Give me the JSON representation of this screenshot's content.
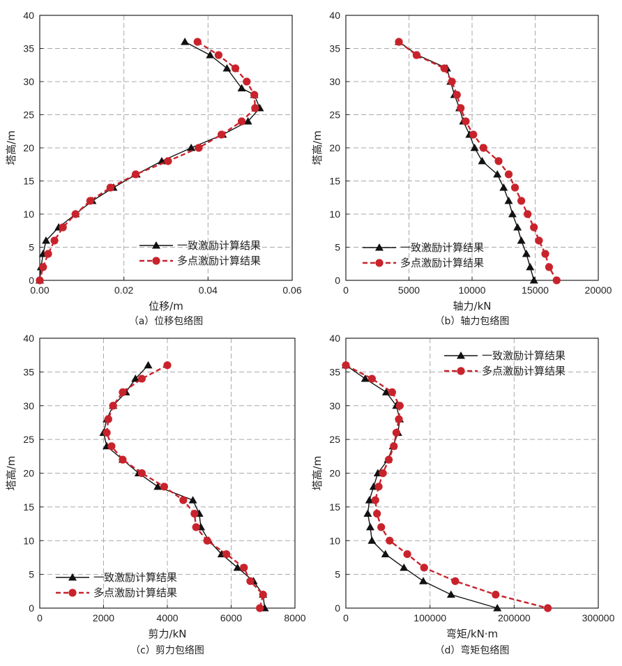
{
  "colors": {
    "s1": "#111111",
    "s2": "#c8232c",
    "grid": "#a8a8a8",
    "axis": "#222222"
  },
  "chart_data": [
    {
      "type": "line",
      "caption": "（a）位移包络图",
      "xlabel": "位移/m",
      "ylabel": "塔高/m",
      "xlim": [
        0,
        0.06
      ],
      "ylim": [
        0,
        40
      ],
      "xticks": [
        "0.00",
        "0.02",
        "0.04",
        "0.06"
      ],
      "xtick_values": [
        0,
        0.02,
        0.04,
        0.06
      ],
      "yticks": [
        0,
        5,
        10,
        15,
        20,
        25,
        30,
        35,
        40
      ],
      "grid": true,
      "legend_position": "lower-right",
      "series": [
        {
          "name": "一致激励计算结果",
          "marker": "triangle",
          "points": [
            [
              0.0345,
              36
            ],
            [
              0.0405,
              34
            ],
            [
              0.0445,
              32
            ],
            [
              0.048,
              29
            ],
            [
              0.051,
              28
            ],
            [
              0.0523,
              26
            ],
            [
              0.0495,
              24
            ],
            [
              0.0435,
              22
            ],
            [
              0.036,
              20
            ],
            [
              0.029,
              18
            ],
            [
              0.023,
              16
            ],
            [
              0.0175,
              14
            ],
            [
              0.0125,
              12
            ],
            [
              0.0085,
              10
            ],
            [
              0.0045,
              8
            ],
            [
              0.0015,
              6
            ],
            [
              0.0008,
              4
            ],
            [
              0.0003,
              2
            ],
            [
              0.0,
              0
            ]
          ]
        },
        {
          "name": "多点激励计算结果",
          "marker": "circle",
          "points": [
            [
              0.0375,
              36
            ],
            [
              0.0425,
              34
            ],
            [
              0.0465,
              32
            ],
            [
              0.0492,
              30
            ],
            [
              0.051,
              28
            ],
            [
              0.0512,
              26
            ],
            [
              0.048,
              24
            ],
            [
              0.0432,
              22
            ],
            [
              0.0378,
              20
            ],
            [
              0.0305,
              18
            ],
            [
              0.0228,
              16
            ],
            [
              0.0168,
              14
            ],
            [
              0.012,
              12
            ],
            [
              0.0085,
              10
            ],
            [
              0.0055,
              8
            ],
            [
              0.0035,
              6
            ],
            [
              0.002,
              4
            ],
            [
              0.0008,
              2
            ],
            [
              0.0,
              0
            ]
          ]
        }
      ]
    },
    {
      "type": "line",
      "caption": "（b）轴力包络图",
      "xlabel": "轴力/kN",
      "ylabel": "塔高/m",
      "xlim": [
        0,
        20000
      ],
      "ylim": [
        0,
        40
      ],
      "xticks": [
        "0",
        "5000",
        "10000",
        "15000",
        "20000"
      ],
      "xtick_values": [
        0,
        5000,
        10000,
        15000,
        20000
      ],
      "yticks": [
        0,
        5,
        10,
        15,
        20,
        25,
        30,
        35,
        40
      ],
      "grid": true,
      "legend_position": "lower-left",
      "series": [
        {
          "name": "一致激励计算结果",
          "marker": "triangle",
          "points": [
            [
              4200,
              36
            ],
            [
              5700,
              34
            ],
            [
              8000,
              32
            ],
            [
              8300,
              30
            ],
            [
              8600,
              28
            ],
            [
              9000,
              26
            ],
            [
              9300,
              24
            ],
            [
              9800,
              22
            ],
            [
              10200,
              20
            ],
            [
              10800,
              18
            ],
            [
              12000,
              16
            ],
            [
              12500,
              14
            ],
            [
              12900,
              12
            ],
            [
              13200,
              10
            ],
            [
              13600,
              8
            ],
            [
              13900,
              6
            ],
            [
              14300,
              4
            ],
            [
              14600,
              2
            ],
            [
              14900,
              0
            ]
          ]
        },
        {
          "name": "多点激励计算结果",
          "marker": "circle",
          "points": [
            [
              4200,
              36
            ],
            [
              5600,
              34
            ],
            [
              7800,
              32
            ],
            [
              8400,
              30
            ],
            [
              8800,
              28
            ],
            [
              9100,
              26
            ],
            [
              9500,
              24
            ],
            [
              10100,
              22
            ],
            [
              10900,
              20
            ],
            [
              12100,
              18
            ],
            [
              12900,
              16
            ],
            [
              13400,
              14
            ],
            [
              13900,
              12
            ],
            [
              14400,
              10
            ],
            [
              14900,
              8
            ],
            [
              15300,
              6
            ],
            [
              15800,
              4
            ],
            [
              16100,
              2
            ],
            [
              16700,
              0
            ]
          ]
        }
      ]
    },
    {
      "type": "line",
      "caption": "（c）剪力包络图",
      "xlabel": "剪力/kN",
      "ylabel": "塔高/m",
      "xlim": [
        0,
        8000
      ],
      "ylim": [
        0,
        40
      ],
      "xticks": [
        "0",
        "2000",
        "4000",
        "6000",
        "8000"
      ],
      "xtick_values": [
        0,
        2000,
        4000,
        6000,
        8000
      ],
      "yticks": [
        0,
        5,
        10,
        15,
        20,
        25,
        30,
        35,
        40
      ],
      "grid": true,
      "legend_position": "lower-left",
      "series": [
        {
          "name": "一致激励计算结果",
          "marker": "triangle",
          "points": [
            [
              3400,
              36
            ],
            [
              3000,
              34
            ],
            [
              2700,
              32
            ],
            [
              2300,
              30
            ],
            [
              2100,
              28
            ],
            [
              2000,
              26
            ],
            [
              2100,
              24
            ],
            [
              2600,
              22
            ],
            [
              3100,
              20
            ],
            [
              3700,
              18
            ],
            [
              4800,
              16
            ],
            [
              5000,
              14
            ],
            [
              5050,
              12
            ],
            [
              5300,
              10
            ],
            [
              5700,
              8
            ],
            [
              6200,
              6
            ],
            [
              6700,
              4
            ],
            [
              7000,
              2
            ],
            [
              7050,
              0
            ]
          ]
        },
        {
          "name": "多点激励计算结果",
          "marker": "circle",
          "points": [
            [
              4000,
              36
            ],
            [
              3200,
              34
            ],
            [
              2600,
              32
            ],
            [
              2300,
              30
            ],
            [
              2150,
              28
            ],
            [
              2100,
              26
            ],
            [
              2250,
              24
            ],
            [
              2600,
              22
            ],
            [
              3200,
              20
            ],
            [
              3900,
              18
            ],
            [
              4500,
              16
            ],
            [
              4850,
              14
            ],
            [
              4900,
              12
            ],
            [
              5250,
              10
            ],
            [
              5850,
              8
            ],
            [
              6400,
              6
            ],
            [
              6600,
              4
            ],
            [
              7000,
              2
            ],
            [
              6900,
              0
            ]
          ]
        }
      ]
    },
    {
      "type": "line",
      "caption": "（d）弯矩包络图",
      "xlabel": "弯矩/kN·m",
      "ylabel": "塔高/m",
      "xlim": [
        0,
        300000
      ],
      "ylim": [
        0,
        40
      ],
      "xticks": [
        "0",
        "100000",
        "200000",
        "300000"
      ],
      "xtick_values": [
        0,
        100000,
        200000,
        300000
      ],
      "yticks": [
        0,
        5,
        10,
        15,
        20,
        25,
        30,
        35,
        40
      ],
      "grid": true,
      "legend_position": "top-right",
      "series": [
        {
          "name": "一致激励计算结果",
          "marker": "triangle",
          "points": [
            [
              0,
              36
            ],
            [
              23000,
              34
            ],
            [
              48000,
              32
            ],
            [
              60000,
              30
            ],
            [
              64000,
              28
            ],
            [
              62000,
              26
            ],
            [
              56000,
              24
            ],
            [
              50000,
              22
            ],
            [
              38000,
              20
            ],
            [
              33000,
              18
            ],
            [
              28000,
              16
            ],
            [
              26000,
              14
            ],
            [
              29000,
              12
            ],
            [
              31000,
              10
            ],
            [
              47000,
              8
            ],
            [
              69000,
              6
            ],
            [
              92000,
              4
            ],
            [
              125000,
              2
            ],
            [
              180000,
              0
            ]
          ]
        },
        {
          "name": "多点激励计算结果",
          "marker": "circle",
          "points": [
            [
              0,
              36
            ],
            [
              31000,
              34
            ],
            [
              55000,
              32
            ],
            [
              64000,
              30
            ],
            [
              63000,
              28
            ],
            [
              60000,
              26
            ],
            [
              57000,
              24
            ],
            [
              51000,
              22
            ],
            [
              44000,
              20
            ],
            [
              39000,
              18
            ],
            [
              35000,
              16
            ],
            [
              37000,
              14
            ],
            [
              42000,
              12
            ],
            [
              52000,
              10
            ],
            [
              73000,
              8
            ],
            [
              93000,
              6
            ],
            [
              130000,
              4
            ],
            [
              178000,
              2
            ],
            [
              240000,
              0
            ]
          ]
        }
      ]
    }
  ]
}
